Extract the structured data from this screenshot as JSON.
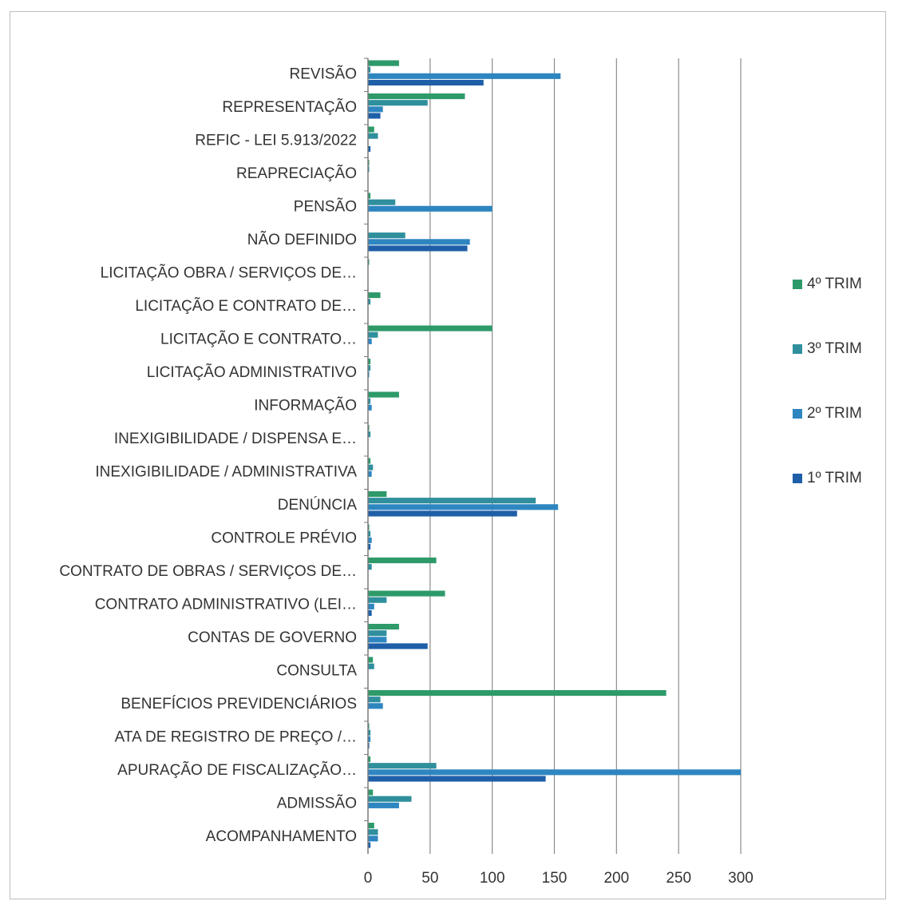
{
  "chart_data": {
    "type": "bar",
    "orientation": "horizontal",
    "categories": [
      "ACOMPANHAMENTO",
      "ADMISSÃO",
      "APURAÇÃO DE FISCALIZAÇÃO…",
      "ATA DE REGISTRO DE PREÇO /…",
      "BENEFÍCIOS PREVIDENCIÁRIOS",
      "CONSULTA",
      "CONTAS DE GOVERNO",
      "CONTRATO ADMINISTRATIVO (LEI…",
      "CONTRATO DE OBRAS / SERVIÇOS DE…",
      "CONTROLE PRÉVIO",
      "DENÚNCIA",
      "INEXIGIBILIDADE / ADMINISTRATIVA",
      "INEXIGIBILIDADE / DISPENSA E…",
      "INFORMAÇÃO",
      "LICITAÇÃO ADMINISTRATIVO",
      "LICITAÇÃO E CONTRATO…",
      "LICITAÇÃO E CONTRATO DE…",
      "LICITAÇÃO OBRA / SERVIÇOS DE…",
      "NÃO DEFINIDO",
      "PENSÃO",
      "REAPRECIAÇÃO",
      "REFIC - LEI 5.913/2022",
      "REPRESENTAÇÃO",
      "REVISÃO"
    ],
    "series": [
      {
        "name": "1º TRIM",
        "color": "#1f5fa8",
        "values": [
          2,
          0,
          143,
          1,
          0,
          0,
          48,
          3,
          0,
          2,
          120,
          0,
          0,
          0,
          0,
          0,
          0,
          0,
          80,
          0,
          0,
          2,
          10,
          93
        ]
      },
      {
        "name": "2º TRIM",
        "color": "#2e86c1",
        "values": [
          8,
          25,
          300,
          2,
          12,
          0,
          15,
          5,
          0,
          3,
          153,
          3,
          0,
          3,
          1,
          3,
          0,
          0,
          82,
          100,
          0,
          0,
          12,
          155
        ]
      },
      {
        "name": "3º TRIM",
        "color": "#2f8f9d",
        "values": [
          8,
          35,
          55,
          2,
          10,
          5,
          15,
          15,
          3,
          2,
          135,
          4,
          2,
          2,
          2,
          8,
          2,
          0,
          30,
          22,
          1,
          8,
          48,
          2
        ]
      },
      {
        "name": "4º TRIM",
        "color": "#2e9a6a",
        "values": [
          5,
          4,
          2,
          1,
          240,
          4,
          25,
          62,
          55,
          1,
          15,
          2,
          1,
          25,
          2,
          100,
          10,
          1,
          0,
          2,
          1,
          5,
          78,
          25
        ]
      }
    ],
    "xlim": [
      0,
      300
    ],
    "xticks": [
      0,
      50,
      100,
      150,
      200,
      250,
      300
    ],
    "grid": true,
    "legend_position": "right"
  }
}
